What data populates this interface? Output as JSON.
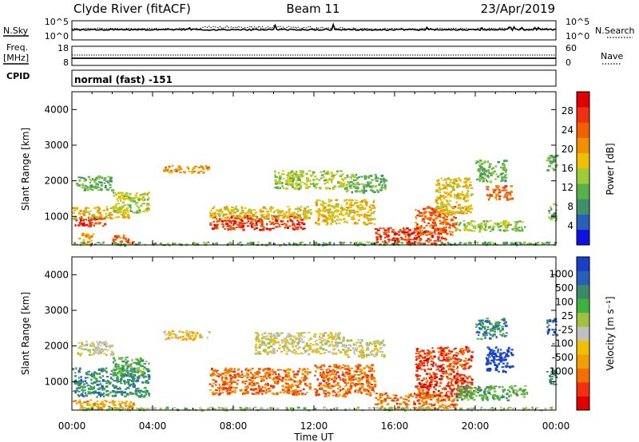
{
  "header": {
    "station": "Clyde River (fitACF)",
    "beam": "Beam 11",
    "date": "23/Apr/2019"
  },
  "top_panels": {
    "nsky_label": "N.Sky",
    "nsky_ticks": [
      "10^5",
      "10^0"
    ],
    "nsearch_label": "N.Search",
    "nsearch_ticks": [
      "10^5",
      "10^0"
    ],
    "freq_label": "Freq.",
    "freq_unit": "[MHz]",
    "freq_ticks": [
      "18",
      "8"
    ],
    "nave_label": "Nave",
    "nave_ticks": [
      "60",
      "0"
    ],
    "cpid_label": "CPID",
    "cpid_value": "normal (fast) -151"
  },
  "colors": {
    "power": [
      "#1010e0",
      "#2a5fb8",
      "#3f8f6a",
      "#58b048",
      "#9ccc3a",
      "#f0c000",
      "#f09000",
      "#f06000",
      "#f03010",
      "#e00000"
    ],
    "velocity": [
      "#e00000",
      "#f03010",
      "#f07000",
      "#f0a000",
      "#f0c000",
      "#c0c0c0",
      "#a0c040",
      "#40b040",
      "#3a8a6a",
      "#2a5fb8",
      "#1a3fc8"
    ]
  },
  "chart_data": [
    {
      "type": "heatmap",
      "name": "power",
      "ylabel": "Slant Range [km]",
      "yticks": [
        "1000",
        "2000",
        "3000",
        "4000"
      ],
      "ylim": [
        200,
        4500
      ],
      "xlim": [
        0,
        24
      ],
      "colorbar_label": "Power [dB]",
      "colorbar_ticks": [
        "4",
        "8",
        "12",
        "16",
        "20",
        "24",
        "28"
      ],
      "colorbar_range": [
        0,
        32
      ],
      "regions": [
        {
          "t0": 0.0,
          "t1": 1.6,
          "r0": 750,
          "r1": 1050,
          "v": 27
        },
        {
          "t0": 0.0,
          "t1": 2.8,
          "r0": 950,
          "r1": 1300,
          "v": 16
        },
        {
          "t0": 0.2,
          "t1": 2.0,
          "r0": 1750,
          "r1": 2150,
          "v": 11
        },
        {
          "t0": 2.0,
          "t1": 3.8,
          "r0": 1100,
          "r1": 1700,
          "v": 13
        },
        {
          "t0": 0.3,
          "t1": 1.0,
          "r0": 250,
          "r1": 550,
          "v": 22
        },
        {
          "t0": 2.0,
          "t1": 3.0,
          "r0": 250,
          "r1": 500,
          "v": 24
        },
        {
          "t0": 0.0,
          "t1": 24.0,
          "r0": 220,
          "r1": 300,
          "v": 10
        },
        {
          "t0": 6.8,
          "t1": 11.5,
          "r0": 650,
          "r1": 1050,
          "v": 27
        },
        {
          "t0": 6.8,
          "t1": 11.8,
          "r0": 950,
          "r1": 1300,
          "v": 16
        },
        {
          "t0": 4.5,
          "t1": 6.8,
          "r0": 2250,
          "r1": 2450,
          "v": 20
        },
        {
          "t0": 10.0,
          "t1": 13.5,
          "r0": 1800,
          "r1": 2300,
          "v": 13
        },
        {
          "t0": 12.0,
          "t1": 15.0,
          "r0": 800,
          "r1": 1500,
          "v": 16
        },
        {
          "t0": 13.5,
          "t1": 15.5,
          "r0": 1700,
          "r1": 2200,
          "v": 11
        },
        {
          "t0": 15.0,
          "t1": 18.5,
          "r0": 250,
          "r1": 700,
          "v": 27
        },
        {
          "t0": 17.0,
          "t1": 19.0,
          "r0": 500,
          "r1": 1300,
          "v": 23
        },
        {
          "t0": 18.0,
          "t1": 19.8,
          "r0": 1100,
          "r1": 2100,
          "v": 18
        },
        {
          "t0": 19.0,
          "t1": 22.5,
          "r0": 600,
          "r1": 900,
          "v": 14
        },
        {
          "t0": 20.5,
          "t1": 21.8,
          "r0": 1500,
          "r1": 1900,
          "v": 23
        },
        {
          "t0": 20.0,
          "t1": 21.5,
          "r0": 2000,
          "r1": 2600,
          "v": 10
        },
        {
          "t0": 23.5,
          "t1": 24.0,
          "r0": 2300,
          "r1": 2800,
          "v": 10
        },
        {
          "t0": 23.6,
          "t1": 24.0,
          "r0": 900,
          "r1": 1400,
          "v": 12
        }
      ]
    },
    {
      "type": "heatmap",
      "name": "velocity",
      "ylabel": "Slant Range [km]",
      "yticks": [
        "1000",
        "2000",
        "3000",
        "4000"
      ],
      "ylim": [
        200,
        4500
      ],
      "xlim": [
        0,
        24
      ],
      "xticks": [
        "00:00",
        "04:00",
        "08:00",
        "12:00",
        "16:00",
        "20:00",
        "00:00"
      ],
      "xlabel": "Time UT",
      "colorbar_label": "Velocity [m s⁻¹]",
      "colorbar_ticks": [
        "1000",
        "500",
        "100",
        "25",
        "-25",
        "-100",
        "-500",
        "-1000"
      ],
      "regions": [
        {
          "t0": 0.0,
          "t1": 3.8,
          "r0": 600,
          "r1": 1400,
          "v": 8
        },
        {
          "t0": 0.2,
          "t1": 2.0,
          "r0": 1750,
          "r1": 2150,
          "v": 5
        },
        {
          "t0": 2.0,
          "t1": 3.8,
          "r0": 1200,
          "r1": 1700,
          "v": 7
        },
        {
          "t0": 0.0,
          "t1": 3.0,
          "r0": 250,
          "r1": 500,
          "v": 3
        },
        {
          "t0": 4.5,
          "t1": 6.8,
          "r0": 2200,
          "r1": 2450,
          "v": 4
        },
        {
          "t0": 6.8,
          "t1": 11.8,
          "r0": 650,
          "r1": 1400,
          "v": 2
        },
        {
          "t0": 9.0,
          "t1": 13.5,
          "r0": 1800,
          "r1": 2400,
          "v": 5
        },
        {
          "t0": 12.0,
          "t1": 15.0,
          "r0": 600,
          "r1": 1500,
          "v": 2
        },
        {
          "t0": 13.5,
          "t1": 15.5,
          "r0": 1700,
          "r1": 2200,
          "v": 5
        },
        {
          "t0": 15.0,
          "t1": 19.0,
          "r0": 250,
          "r1": 700,
          "v": 2
        },
        {
          "t0": 17.0,
          "t1": 19.8,
          "r0": 600,
          "r1": 2000,
          "v": 1
        },
        {
          "t0": 19.0,
          "t1": 22.5,
          "r0": 500,
          "r1": 900,
          "v": 7
        },
        {
          "t0": 20.5,
          "t1": 21.8,
          "r0": 1300,
          "r1": 2000,
          "v": 10
        },
        {
          "t0": 20.0,
          "t1": 21.5,
          "r0": 2200,
          "r1": 2800,
          "v": 8
        },
        {
          "t0": 23.5,
          "t1": 24.0,
          "r0": 2300,
          "r1": 2800,
          "v": 9
        },
        {
          "t0": 23.6,
          "t1": 24.0,
          "r0": 900,
          "r1": 1400,
          "v": 8
        },
        {
          "t0": 0.0,
          "t1": 24.0,
          "r0": 220,
          "r1": 300,
          "v": 6
        }
      ]
    }
  ]
}
